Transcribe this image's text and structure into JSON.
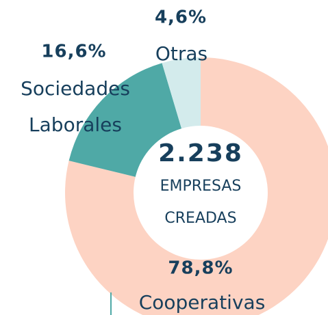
{
  "chart_data": {
    "type": "donut",
    "categories": [
      "Cooperativas",
      "Sociedades Laborales",
      "Otras"
    ],
    "values": [
      78.8,
      16.6,
      4.6
    ],
    "value_labels": [
      "78,8%",
      "16,6%",
      "4,6%"
    ],
    "colors": [
      "#fdd3c3",
      "#4fa9a6",
      "#d3ebec"
    ],
    "center_value": "2.238",
    "center_label": "EMPRESAS CREADAS"
  }
}
